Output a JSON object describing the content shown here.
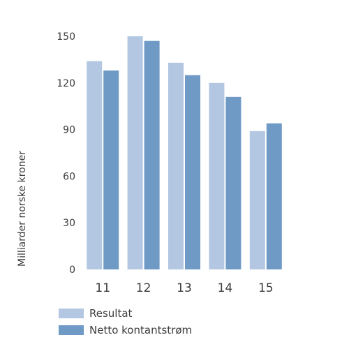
{
  "chart_data": {
    "type": "bar",
    "title": "",
    "xlabel": "",
    "ylabel": "Milliarder norske kroner",
    "categories": [
      "11",
      "12",
      "13",
      "14",
      "15"
    ],
    "series": [
      {
        "name": "Resultat",
        "color": "#b3c7e2",
        "values": [
          134,
          150,
          133,
          120,
          89
        ]
      },
      {
        "name": "Netto kontantstrøm",
        "color": "#6f9ac6",
        "values": [
          128,
          147,
          125,
          111,
          94
        ]
      }
    ],
    "ylim": [
      0,
      150
    ],
    "yticks": [
      "0",
      "30",
      "60",
      "90",
      "120",
      "150"
    ],
    "grid": false,
    "legend": "bottom-left"
  }
}
